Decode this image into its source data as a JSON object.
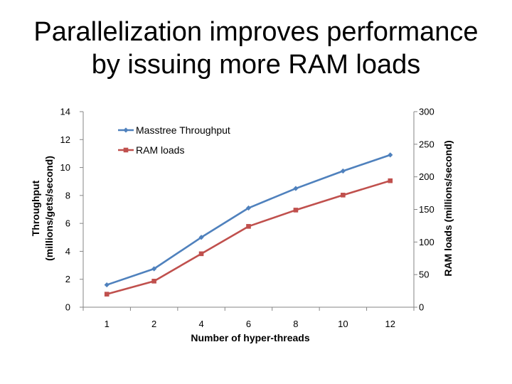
{
  "slide": {
    "title_line1": "Parallelization improves performance",
    "title_line2": "by issuing more RAM loads"
  },
  "chart_data": {
    "type": "line",
    "x": [
      1,
      2,
      4,
      6,
      8,
      10,
      12
    ],
    "xticks": [
      "1",
      "2",
      "4",
      "6",
      "8",
      "10",
      "12"
    ],
    "xlabel": "Number of hyper-threads",
    "ylabel_left_line1": "Throughput",
    "ylabel_left_line2": "(millions/gets/second)",
    "ylabel_right": "RAM loads (millions/second)",
    "ylim_left": [
      0,
      14
    ],
    "yticks_left": [
      0,
      2,
      4,
      6,
      8,
      10,
      12,
      14
    ],
    "ylim_right": [
      0,
      300
    ],
    "yticks_right": [
      0,
      50,
      100,
      150,
      200,
      250,
      300
    ],
    "grid": false,
    "legend": "top-left",
    "series": [
      {
        "name": "Masstree Throughput",
        "axis": "left",
        "color": "#4f81bd",
        "marker": "diamond",
        "values": [
          1.6,
          2.75,
          5.0,
          7.1,
          8.5,
          9.75,
          10.9
        ]
      },
      {
        "name": "RAM loads",
        "axis": "right",
        "color": "#c0504d",
        "marker": "square",
        "values": [
          20,
          40,
          82,
          124,
          149,
          172,
          194
        ]
      }
    ]
  }
}
